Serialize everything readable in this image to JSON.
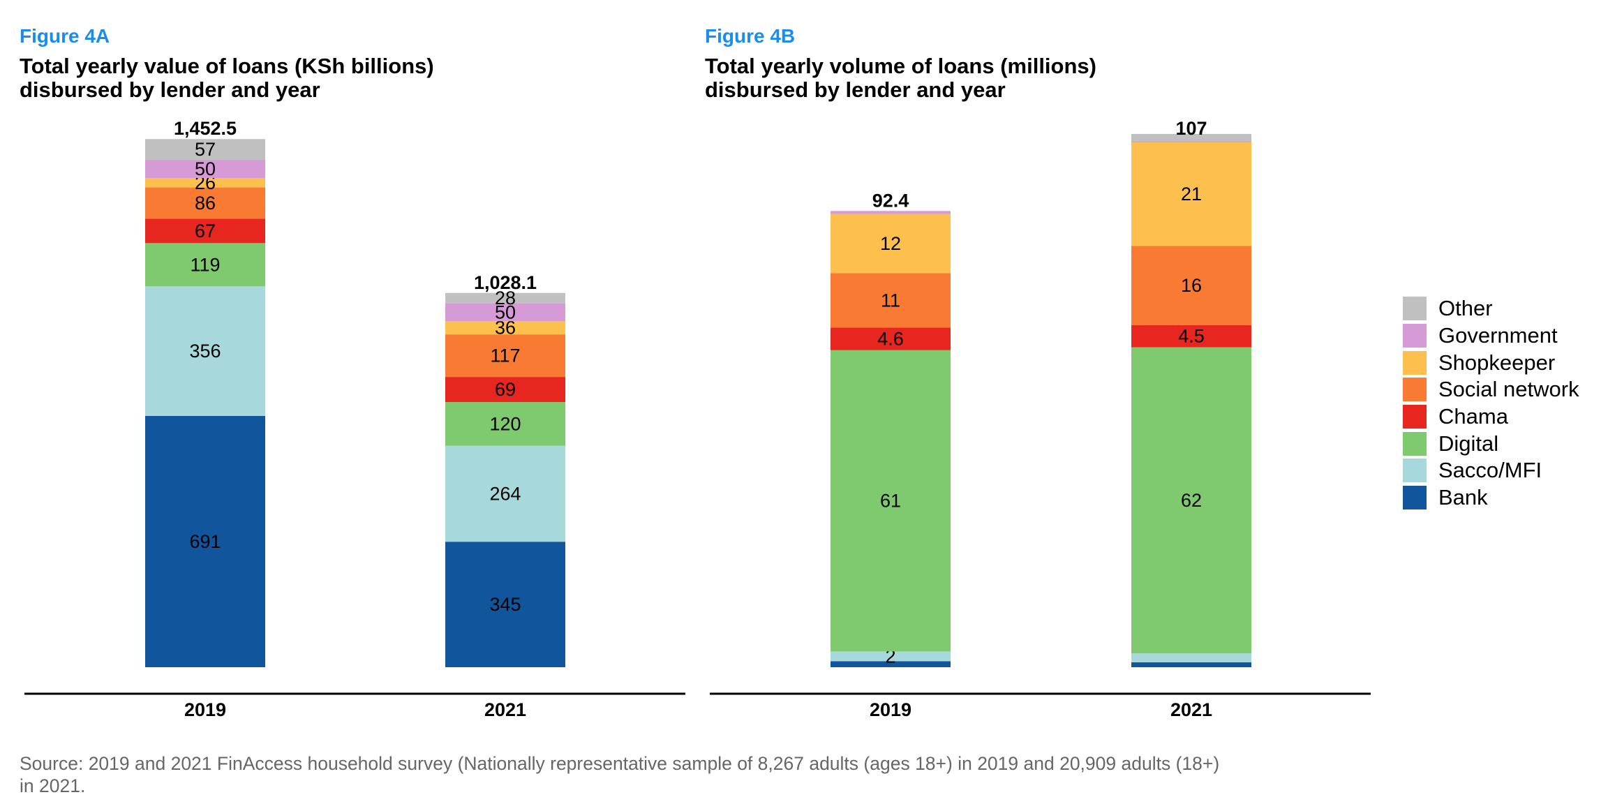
{
  "source_note": "Source: 2019 and 2021 FinAccess household survey (Nationally representative sample of 8,267 adults (ages 18+) in 2019 and 20,909 adults (18+) in 2021.",
  "legend": [
    {
      "name": "Other",
      "color": "#c0c0c0"
    },
    {
      "name": "Government",
      "color": "#d69ad6"
    },
    {
      "name": "Shopkeeper",
      "color": "#fdc04f"
    },
    {
      "name": "Social network",
      "color": "#f97b33"
    },
    {
      "name": "Chama",
      "color": "#e6261f"
    },
    {
      "name": "Digital",
      "color": "#7fca6e"
    },
    {
      "name": "Sacco/MFI",
      "color": "#a7d8dc"
    },
    {
      "name": "Bank",
      "color": "#11559c"
    }
  ],
  "chart_data": [
    {
      "type": "bar",
      "stacked": true,
      "figure_label": "Figure 4A",
      "title": "Total yearly value of loans (KSh billions) disbursed by lender and year",
      "categories": [
        "2019",
        "2021"
      ],
      "ylim": [
        0,
        1452.5
      ],
      "totals": [
        1452.5,
        1028.1
      ],
      "total_labels": [
        "1,452.5",
        "1,028.1"
      ],
      "series": [
        {
          "name": "Bank",
          "values": [
            691,
            345
          ],
          "labels": [
            "691",
            "345"
          ]
        },
        {
          "name": "Sacco/MFI",
          "values": [
            356,
            264
          ],
          "labels": [
            "356",
            "264"
          ]
        },
        {
          "name": "Digital",
          "values": [
            119,
            120
          ],
          "labels": [
            "119",
            "120"
          ]
        },
        {
          "name": "Chama",
          "values": [
            67,
            69
          ],
          "labels": [
            "67",
            "69"
          ]
        },
        {
          "name": "Social network",
          "values": [
            86,
            117
          ],
          "labels": [
            "86",
            "117"
          ]
        },
        {
          "name": "Shopkeeper",
          "values": [
            26,
            36
          ],
          "labels": [
            "26",
            "36"
          ]
        },
        {
          "name": "Government",
          "values": [
            50,
            50
          ],
          "labels": [
            "50",
            "50"
          ]
        },
        {
          "name": "Other",
          "values": [
            57,
            28
          ],
          "labels": [
            "57",
            "28"
          ]
        }
      ]
    },
    {
      "type": "bar",
      "stacked": true,
      "figure_label": "Figure 4B",
      "title": "Total yearly volume of loans (millions) disbursed by lender and year",
      "categories": [
        "2019",
        "2021"
      ],
      "ylim": [
        0,
        107
      ],
      "totals": [
        92.4,
        107
      ],
      "total_labels": [
        "92.4",
        "107"
      ],
      "series": [
        {
          "name": "Bank",
          "values": [
            1.2,
            1.0
          ],
          "labels": [
            "",
            ""
          ]
        },
        {
          "name": "Sacco/MFI",
          "values": [
            2,
            1.8
          ],
          "labels": [
            "2",
            ""
          ]
        },
        {
          "name": "Digital",
          "values": [
            61,
            62
          ],
          "labels": [
            "61",
            "62"
          ]
        },
        {
          "name": "Chama",
          "values": [
            4.6,
            4.5
          ],
          "labels": [
            "4.6",
            "4.5"
          ]
        },
        {
          "name": "Social network",
          "values": [
            11,
            16
          ],
          "labels": [
            "11",
            "16"
          ]
        },
        {
          "name": "Shopkeeper",
          "values": [
            12,
            21
          ],
          "labels": [
            "12",
            "21"
          ]
        },
        {
          "name": "Government",
          "values": [
            0.6,
            0.2
          ],
          "labels": [
            "",
            ""
          ]
        },
        {
          "name": "Other",
          "values": [
            0,
            1.5
          ],
          "labels": [
            "",
            ""
          ]
        }
      ]
    }
  ]
}
